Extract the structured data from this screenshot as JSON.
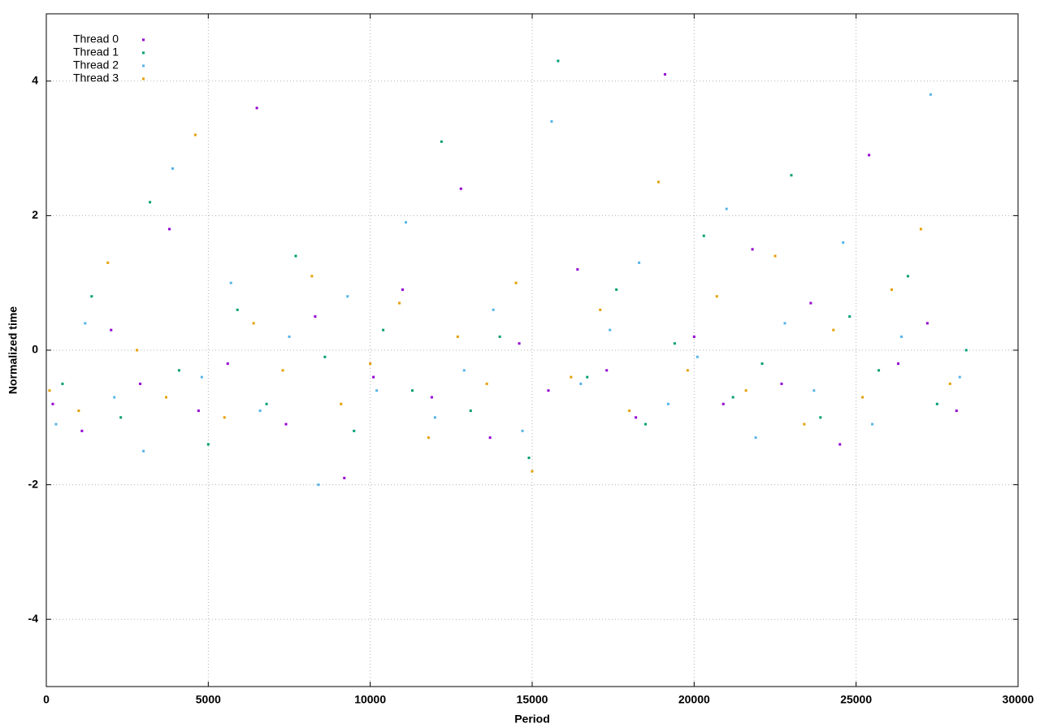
{
  "chart_data": {
    "type": "scatter",
    "x_label": "Period",
    "y_label": "Normalized time",
    "xlim": [
      0,
      30000
    ],
    "ylim": [
      -5,
      5
    ],
    "xticks": [
      0,
      5000,
      10000,
      15000,
      20000,
      25000,
      30000
    ],
    "yticks": [
      -4,
      -2,
      0,
      2,
      4
    ],
    "grid": true,
    "legend": "top-left",
    "series": [
      {
        "name": "Thread 0",
        "color": "#9400d3",
        "x": [
          200,
          1100,
          2000,
          2900,
          3800,
          4700,
          5600,
          6500,
          7400,
          8300,
          9200,
          10100,
          11000,
          11900,
          12800,
          13700,
          14600,
          15500,
          16400,
          17300,
          18200,
          19100,
          20000,
          20900,
          21800,
          22700,
          23600,
          24500,
          25400,
          26300,
          27200,
          28100
        ],
        "values": [
          -0.8,
          -1.2,
          0.3,
          -0.5,
          1.8,
          -0.9,
          -0.2,
          3.6,
          -1.1,
          0.5,
          -1.9,
          -0.4,
          0.9,
          -0.7,
          2.4,
          -1.3,
          0.1,
          -0.6,
          1.2,
          -0.3,
          -1.0,
          4.1,
          0.2,
          -0.8,
          1.5,
          -0.5,
          0.7,
          -1.4,
          2.9,
          -0.2,
          0.4,
          -0.9
        ]
      },
      {
        "name": "Thread 1",
        "color": "#009e73",
        "x": [
          500,
          1400,
          2300,
          3200,
          4100,
          5000,
          5900,
          6800,
          7700,
          8600,
          9500,
          10400,
          11300,
          12200,
          13100,
          14000,
          14900,
          15800,
          16700,
          17600,
          18500,
          19400,
          20300,
          21200,
          22100,
          23000,
          23900,
          24800,
          25700,
          26600,
          27500,
          28400
        ],
        "values": [
          -0.5,
          0.8,
          -1.0,
          2.2,
          -0.3,
          -1.4,
          0.6,
          -0.8,
          1.4,
          -0.1,
          -1.2,
          0.3,
          -0.6,
          3.1,
          -0.9,
          0.2,
          -1.6,
          4.3,
          -0.4,
          0.9,
          -1.1,
          0.1,
          1.7,
          -0.7,
          -0.2,
          2.6,
          -1.0,
          0.5,
          -0.3,
          1.1,
          -0.8,
          0.0
        ]
      },
      {
        "name": "Thread 2",
        "color": "#56b4e9",
        "x": [
          300,
          1200,
          2100,
          3000,
          3900,
          4800,
          5700,
          6600,
          7500,
          8400,
          9300,
          10200,
          11100,
          12000,
          12900,
          13800,
          14700,
          15600,
          16500,
          17400,
          18300,
          19200,
          20100,
          21000,
          21900,
          22800,
          23700,
          24600,
          25500,
          26400,
          27300,
          28200
        ],
        "values": [
          -1.1,
          0.4,
          -0.7,
          -1.5,
          2.7,
          -0.4,
          1.0,
          -0.9,
          0.2,
          -2.0,
          0.8,
          -0.6,
          1.9,
          -1.0,
          -0.3,
          0.6,
          -1.2,
          3.4,
          -0.5,
          0.3,
          1.3,
          -0.8,
          -0.1,
          2.1,
          -1.3,
          0.4,
          -0.6,
          1.6,
          -1.1,
          0.2,
          3.8,
          -0.4
        ]
      },
      {
        "name": "Thread 3",
        "color": "#e69f00",
        "x": [
          100,
          1000,
          1900,
          2800,
          3700,
          4600,
          5500,
          6400,
          7300,
          8200,
          9100,
          10000,
          10900,
          11800,
          12700,
          13600,
          14500,
          15000,
          16200,
          17100,
          18000,
          18900,
          19800,
          20700,
          21600,
          22500,
          23400,
          24300,
          25200,
          26100,
          27000,
          27900
        ],
        "values": [
          -0.6,
          -0.9,
          1.3,
          0.0,
          -0.7,
          3.2,
          -1.0,
          0.4,
          -0.3,
          1.1,
          -0.8,
          -0.2,
          0.7,
          -1.3,
          0.2,
          -0.5,
          1.0,
          -1.8,
          -0.4,
          0.6,
          -0.9,
          2.5,
          -0.3,
          0.8,
          -0.6,
          1.4,
          -1.1,
          0.3,
          -0.7,
          0.9,
          1.8,
          -0.5
        ]
      }
    ]
  }
}
